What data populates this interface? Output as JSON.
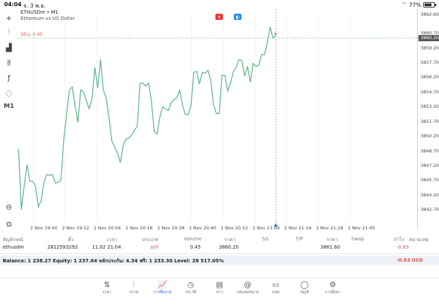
{
  "status": {
    "time": "04:04",
    "date": "จ. 3 พ.ย.",
    "battery": "77%",
    "battery_level": 0.77
  },
  "toolbar": [
    {
      "name": "crosshair-icon",
      "glyph": "+"
    },
    {
      "name": "candles-icon",
      "glyph": "⫶"
    },
    {
      "name": "indicators-icon",
      "glyph": "▟"
    },
    {
      "name": "settings-lines-icon",
      "glyph": "⫵"
    },
    {
      "name": "function-icon",
      "glyph": "ƒ"
    },
    {
      "name": "objects-icon",
      "glyph": "◌"
    },
    {
      "name": "timeframe-button",
      "glyph": "M1"
    }
  ],
  "chart": {
    "symbol": "ETHUSDm • M1",
    "description": "Ethereum vs US Dollar",
    "sell_label": "SELL 0.45",
    "current_price": "3860.20",
    "trade_buttons": [
      {
        "name": "sell-button",
        "color": "#e53935",
        "glyph": "+"
      },
      {
        "name": "buy-button",
        "color": "#1e88e5",
        "glyph": "◐"
      }
    ],
    "line_color": "#5cb88a"
  },
  "chart_data": {
    "type": "line",
    "ylim": [
      3841.6,
      3862.6
    ],
    "y_ticks": [
      "3862.60",
      "3860.70",
      "3859.20",
      "3857.70",
      "3856.20",
      "3854.70",
      "3853.20",
      "3851.70",
      "3850.20",
      "3848.70",
      "3847.20",
      "3845.70",
      "3844.20",
      "3842.70"
    ],
    "x_ticks": [
      "2 Nov 19:40",
      "2 Nov 19:52",
      "2 Nov 20:04",
      "2 Nov 20:16",
      "2 Nov 20:28",
      "2 Nov 20:40",
      "2 Nov 20:52",
      "2 Nov 21:04",
      "2 Nov 21:16",
      "2 Nov 21:28",
      "2 Nov 21:40"
    ],
    "sell_price": 3860.2,
    "series": [
      {
        "values": [
          3848.9,
          3842.7,
          3845.1,
          3847.3,
          3845.6,
          3845.6,
          3845.1,
          3843.0,
          3843.6,
          3845.5,
          3846.3,
          3846.2,
          3846.3,
          3845.4,
          3845.5,
          3845.7,
          3849.8,
          3852.5,
          3854.9,
          3855.2,
          3853.3,
          3851.6,
          3854.9,
          3854.7,
          3853.8,
          3853.0,
          3854.0,
          3857.2,
          3855.1,
          3858.0,
          3854.9,
          3854.1,
          3852.1,
          3849.7,
          3849.1,
          3848.5,
          3847.5,
          3849.2,
          3849.9,
          3850.0,
          3850.3,
          3850.8,
          3851.2,
          3855.6,
          3855.6,
          3855.3,
          3855.6,
          3853.8,
          3850.7,
          3850.4,
          3852.1,
          3853.2,
          3853.0,
          3852.8,
          3853.6,
          3853.9,
          3854.1,
          3854.9,
          3853.4,
          3852.4,
          3852.4,
          3853.3,
          3856.7,
          3856.8,
          3855.5,
          3856.7,
          3856.6,
          3856.9,
          3855.9,
          3853.4,
          3852.5,
          3852.5,
          3856.4,
          3856.4,
          3854.8,
          3855.6,
          3856.8,
          3857.2,
          3858.0,
          3857.9,
          3856.3,
          3857.3,
          3855.7,
          3857.6,
          3857.3,
          3857.4,
          3858.5,
          3858.5,
          3859.7,
          3861.3,
          3860.2,
          3860.5
        ]
      }
    ]
  },
  "table": {
    "headers": [
      "สัญลักษณ์",
      "ตั๋ว",
      "เวลา",
      "ประเภท",
      "Volume",
      "ราคา",
      "S/L",
      "T/P",
      "ราคา",
      "Swap",
      "กำไร",
      "หมายเหตุ"
    ],
    "row": {
      "symbol": "ethusdm",
      "ticket": "2812593292",
      "time": "11.02 21:04",
      "type": "sell",
      "volume": "0.45",
      "open_price": "3860.20",
      "current_price": "3861.60",
      "profit": "-0.63"
    },
    "balance_text": "Balance: 1 238.27 Equity: 1 237.64 หลักประกัน: 4.34 ฟรี: 1 233.30 Level: 28 517.05%",
    "total_profit": "-0.63",
    "currency": "USD"
  },
  "nav": [
    {
      "name": "nav-quotes",
      "icon": "quotes-icon",
      "glyph": "⇅",
      "label": "ราคา"
    },
    {
      "name": "nav-chart",
      "icon": "chart-icon",
      "glyph": "⫶",
      "label": "กราฟ"
    },
    {
      "name": "nav-trade",
      "icon": "trade-icon",
      "glyph": "📈",
      "label": "การซื้อขาย",
      "active": true
    },
    {
      "name": "nav-history",
      "icon": "history-icon",
      "glyph": "◷",
      "label": "ประวัติ"
    },
    {
      "name": "nav-news",
      "icon": "news-icon",
      "glyph": "▤",
      "label": "ข่าว"
    },
    {
      "name": "nav-mailbox",
      "icon": "mailbox-icon",
      "glyph": "@",
      "label": "กล่องจดหมาย"
    },
    {
      "name": "nav-chat",
      "icon": "chat-icon",
      "glyph": "▭",
      "label": "แชท"
    },
    {
      "name": "nav-account",
      "icon": "account-icon",
      "glyph": "◯",
      "label": "บัญชี"
    },
    {
      "name": "nav-settings",
      "icon": "settings-icon",
      "glyph": "⚙",
      "label": "การตั้งค่า"
    }
  ]
}
